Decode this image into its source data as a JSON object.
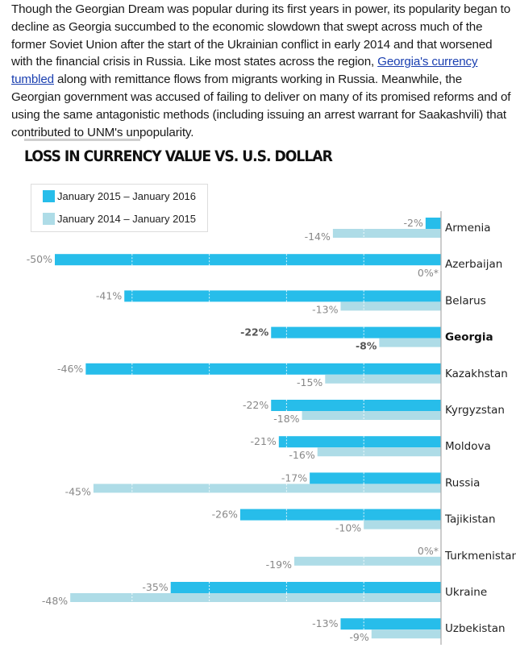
{
  "article": {
    "paragraph_before_link": "Though the Georgian Dream was popular during its first years in power, its popularity began to decline as Georgia succumbed to the economic slowdown that swept across much of the former Soviet Union after the start of the Ukrainian conflict in early 2014 and that worsened with the financial crisis in Russia. Like most states across the region, ",
    "link_text": "Georgia's currency tumbled",
    "paragraph_after_link": " along with remittance flows from migrants working in Russia. Meanwhile, the Georgian government was accused of failing to deliver on many of its promised reforms and of using the same antagonistic methods (including issuing an arrest warrant for Saakashvili) that contributed to UNM's unpopularity."
  },
  "colors": {
    "series_2015_2016": "#27bdea",
    "series_2014_2015": "#aedce7",
    "axis": "#aaaaaa",
    "divider": "#cfcfcf"
  },
  "chart_data": {
    "type": "bar",
    "orientation": "horizontal",
    "title": "LOSS IN CURRENCY VALUE VS. U.S. DOLLAR",
    "xlabel": "",
    "ylabel": "",
    "xlim": [
      -50,
      0
    ],
    "grid": true,
    "grid_interval": 10,
    "legend_position": "top-left",
    "highlight_category": "Georgia",
    "categories": [
      "Armenia",
      "Azerbaijan",
      "Belarus",
      "Georgia",
      "Kazakhstan",
      "Kyrgyzstan",
      "Moldova",
      "Russia",
      "Tajikistan",
      "Turkmenistan",
      "Ukraine",
      "Uzbekistan"
    ],
    "series": [
      {
        "name": "January 2015 – January 2016",
        "values": [
          -2,
          -50,
          -41,
          -22,
          -46,
          -22,
          -21,
          -17,
          -26,
          0,
          -35,
          -13
        ],
        "labels": [
          "-2%",
          "-50%",
          "-41%",
          "-22%",
          "-46%",
          "-22%",
          "-21%",
          "-17%",
          "-26%",
          "0%*",
          "-35%",
          "-13%"
        ]
      },
      {
        "name": "January 2014 – January 2015",
        "values": [
          -14,
          0,
          -13,
          -8,
          -15,
          -18,
          -16,
          -45,
          -10,
          -19,
          -48,
          -9
        ],
        "labels": [
          "-14%",
          "0%*",
          "-13%",
          "-8%",
          "-15%",
          "-18%",
          "-16%",
          "-45%",
          "-10%",
          "-19%",
          "-48%",
          "-9%"
        ]
      }
    ]
  }
}
